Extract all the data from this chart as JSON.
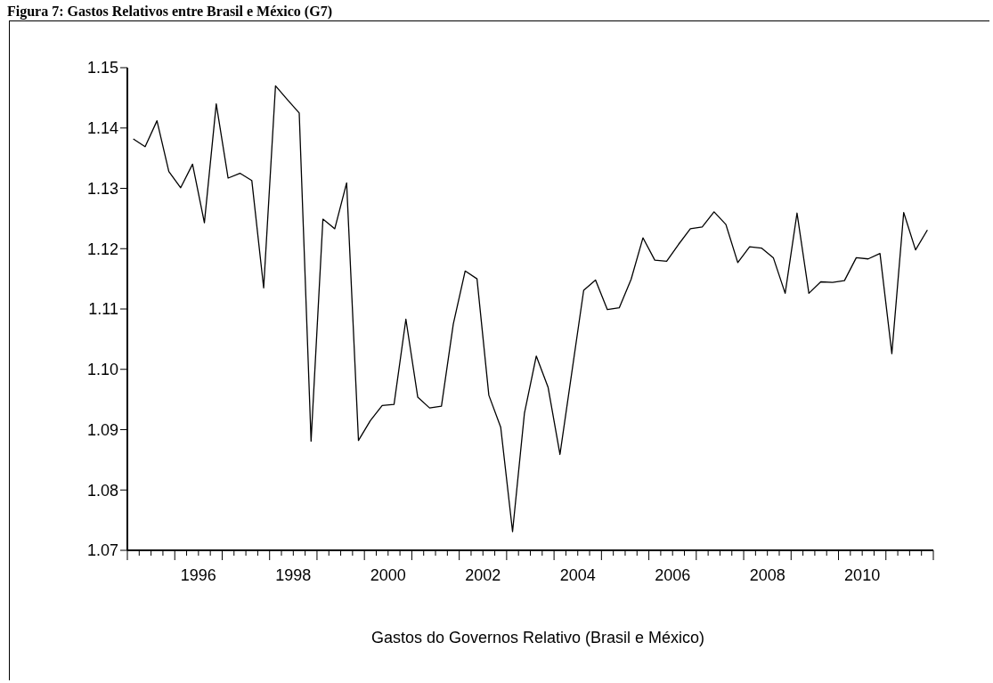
{
  "chart_data": {
    "type": "line",
    "title": "Figura 7: Gastos Relativos entre Brasil e México (G7)",
    "xlabel": "Gastos do Governos Relativo (Brasil e México)",
    "x": [
      1995.125,
      1995.375,
      1995.625,
      1995.875,
      1996.125,
      1996.375,
      1996.625,
      1996.875,
      1997.125,
      1997.375,
      1997.625,
      1997.875,
      1998.125,
      1998.375,
      1998.625,
      1998.875,
      1999.125,
      1999.375,
      1999.625,
      1999.875,
      2000.125,
      2000.375,
      2000.625,
      2000.875,
      2001.125,
      2001.375,
      2001.625,
      2001.875,
      2002.125,
      2002.375,
      2002.625,
      2002.875,
      2003.125,
      2003.375,
      2003.625,
      2003.875,
      2004.125,
      2004.375,
      2004.625,
      2004.875,
      2005.125,
      2005.375,
      2005.625,
      2005.875,
      2006.125,
      2006.375,
      2006.625,
      2006.875,
      2007.125,
      2007.375,
      2007.625,
      2007.875,
      2008.125,
      2008.375,
      2008.625,
      2008.875,
      2009.125,
      2009.375,
      2009.625,
      2009.875,
      2010.125,
      2010.375,
      2010.625,
      2010.875,
      2011.125,
      2011.375,
      2011.625,
      2011.875
    ],
    "series": [
      {
        "color": "#000000",
        "values": [
          1.1382,
          1.1369,
          1.1412,
          1.1328,
          1.1301,
          1.134,
          1.1243,
          1.144,
          1.1317,
          1.1325,
          1.1313,
          1.1135,
          1.147,
          1.1447,
          1.1425,
          1.0881,
          1.1249,
          1.1233,
          1.1309,
          1.0882,
          1.0915,
          1.094,
          1.0942,
          1.1083,
          1.0954,
          1.0936,
          1.0939,
          1.1075,
          1.1163,
          1.115,
          1.0957,
          1.0904,
          1.0731,
          1.0927,
          1.1022,
          1.097,
          1.0859,
          1.0995,
          1.1131,
          1.1148,
          1.1099,
          1.1102,
          1.1149,
          1.1218,
          1.1181,
          1.1179,
          1.1207,
          1.1233,
          1.1236,
          1.1261,
          1.124,
          1.1177,
          1.1203,
          1.1201,
          1.1185,
          1.1126,
          1.1259,
          1.1126,
          1.1145,
          1.1144,
          1.1147,
          1.1185,
          1.1183,
          1.1192,
          1.1026,
          1.126,
          1.1198,
          1.1231
        ]
      }
    ],
    "xlim": [
      1995,
      2012
    ],
    "xticks": [
      {
        "value": 1995,
        "label": null
      },
      {
        "value": 1995.25,
        "label": null
      },
      {
        "value": 1995.5,
        "label": null
      },
      {
        "value": 1995.75,
        "label": null
      },
      {
        "value": 1996,
        "label": null
      },
      {
        "value": 1996.25,
        "label": null
      },
      {
        "value": 1996.5,
        "label": "1996"
      },
      {
        "value": 1996.75,
        "label": null
      },
      {
        "value": 1997,
        "label": null
      },
      {
        "value": 1997.25,
        "label": null
      },
      {
        "value": 1997.5,
        "label": null
      },
      {
        "value": 1997.75,
        "label": null
      },
      {
        "value": 1998,
        "label": null
      },
      {
        "value": 1998.25,
        "label": null
      },
      {
        "value": 1998.5,
        "label": "1998"
      },
      {
        "value": 1998.75,
        "label": null
      },
      {
        "value": 1999,
        "label": null
      },
      {
        "value": 1999.25,
        "label": null
      },
      {
        "value": 1999.5,
        "label": null
      },
      {
        "value": 1999.75,
        "label": null
      },
      {
        "value": 2000,
        "label": null
      },
      {
        "value": 2000.25,
        "label": null
      },
      {
        "value": 2000.5,
        "label": "2000"
      },
      {
        "value": 2000.75,
        "label": null
      },
      {
        "value": 2001,
        "label": null
      },
      {
        "value": 2001.25,
        "label": null
      },
      {
        "value": 2001.5,
        "label": null
      },
      {
        "value": 2001.75,
        "label": null
      },
      {
        "value": 2002,
        "label": null
      },
      {
        "value": 2002.25,
        "label": null
      },
      {
        "value": 2002.5,
        "label": "2002"
      },
      {
        "value": 2002.75,
        "label": null
      },
      {
        "value": 2003,
        "label": null
      },
      {
        "value": 2003.25,
        "label": null
      },
      {
        "value": 2003.5,
        "label": null
      },
      {
        "value": 2003.75,
        "label": null
      },
      {
        "value": 2004,
        "label": null
      },
      {
        "value": 2004.25,
        "label": null
      },
      {
        "value": 2004.5,
        "label": "2004"
      },
      {
        "value": 2004.75,
        "label": null
      },
      {
        "value": 2005,
        "label": null
      },
      {
        "value": 2005.25,
        "label": null
      },
      {
        "value": 2005.5,
        "label": null
      },
      {
        "value": 2005.75,
        "label": null
      },
      {
        "value": 2006,
        "label": null
      },
      {
        "value": 2006.25,
        "label": null
      },
      {
        "value": 2006.5,
        "label": "2006"
      },
      {
        "value": 2006.75,
        "label": null
      },
      {
        "value": 2007,
        "label": null
      },
      {
        "value": 2007.25,
        "label": null
      },
      {
        "value": 2007.5,
        "label": null
      },
      {
        "value": 2007.75,
        "label": null
      },
      {
        "value": 2008,
        "label": null
      },
      {
        "value": 2008.25,
        "label": null
      },
      {
        "value": 2008.5,
        "label": "2008"
      },
      {
        "value": 2008.75,
        "label": null
      },
      {
        "value": 2009,
        "label": null
      },
      {
        "value": 2009.25,
        "label": null
      },
      {
        "value": 2009.5,
        "label": null
      },
      {
        "value": 2009.75,
        "label": null
      },
      {
        "value": 2010,
        "label": null
      },
      {
        "value": 2010.25,
        "label": null
      },
      {
        "value": 2010.5,
        "label": "2010"
      },
      {
        "value": 2010.75,
        "label": null
      },
      {
        "value": 2011,
        "label": null
      },
      {
        "value": 2011.25,
        "label": null
      },
      {
        "value": 2011.5,
        "label": null
      },
      {
        "value": 2011.75,
        "label": null
      },
      {
        "value": 2012,
        "label": null
      }
    ],
    "ylim": [
      1.07,
      1.15
    ],
    "yticks": [
      1.07,
      1.08,
      1.09,
      {
        "value": 1.1,
        "label": "1.10"
      },
      1.11,
      1.12,
      1.13,
      1.14,
      1.15
    ],
    "grid": false,
    "legend": false,
    "marker": "none",
    "line_style": "solid"
  }
}
